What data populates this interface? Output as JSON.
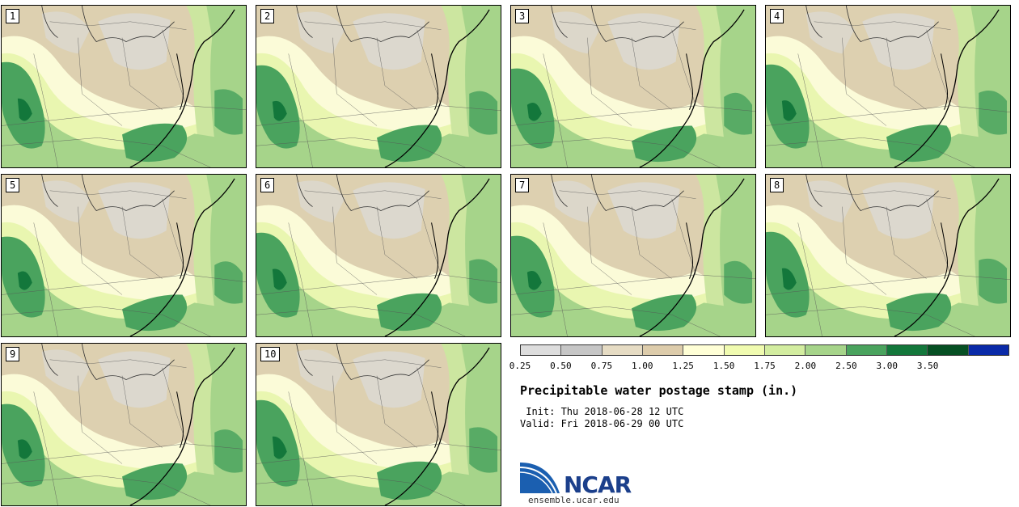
{
  "stamps": [
    "1",
    "2",
    "3",
    "4",
    "5",
    "6",
    "7",
    "8",
    "9",
    "10"
  ],
  "legend": {
    "colors": [
      "#dddddd",
      "#c6c6c6",
      "#e6dcc4",
      "#ddccab",
      "#ffffd6",
      "#f0fbb0",
      "#d3eda0",
      "#a6d48a",
      "#4aa35e",
      "#13773b",
      "#064f23",
      "#0a2aa8"
    ],
    "ticks": [
      "0.25",
      "0.50",
      "0.75",
      "1.00",
      "1.25",
      "1.50",
      "1.75",
      "2.00",
      "2.50",
      "3.00",
      "3.50"
    ]
  },
  "title": "Precipitable water postage stamp (in.)",
  "init_line": " Init: Thu 2018-06-28 12 UTC",
  "valid_line": "Valid: Fri 2018-06-29 00 UTC",
  "logo": {
    "text": "NCAR",
    "site": "ensemble.ucar.edu",
    "blue": "#1b5fb0",
    "navy": "#1b3f8b"
  },
  "map_colors": {
    "tan": "#ddd0b0",
    "gray": "#dcdcdc",
    "cream": "#fbfbd8",
    "lightgreen": "#e9f6b0",
    "midgreen": "#cce6a0",
    "green": "#a6d48a",
    "darkgreen": "#4aa35e",
    "deepgreen": "#13773b"
  }
}
